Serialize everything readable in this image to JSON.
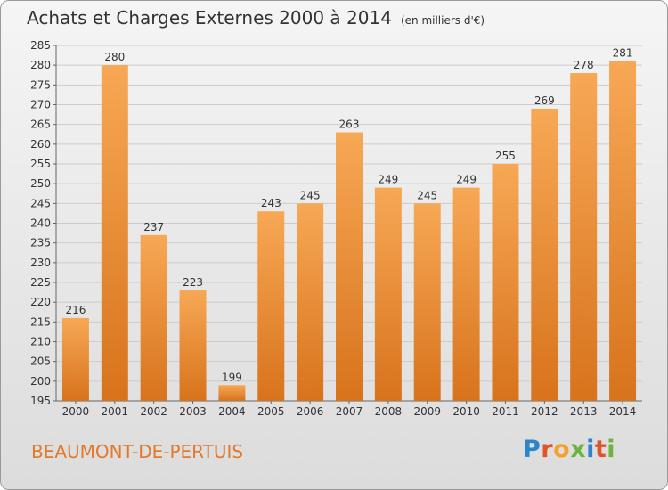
{
  "header": {
    "title": "Achats et Charges Externes 2000 à 2014",
    "unit": "(en milliers d'€)"
  },
  "footer": {
    "town": "BEAUMONT-DE-PERTUIS",
    "logo_letters": [
      "P",
      "r",
      "o",
      "x",
      "i",
      "t",
      "i"
    ]
  },
  "colors": {
    "bar_light": "#f7a855",
    "bar_dark": "#d8731c",
    "town": "#e3792b",
    "grid": "#cccccc"
  },
  "chart_data": {
    "type": "bar",
    "title": "Achats et Charges Externes 2000 à 2014",
    "subtitle": "(en milliers d'€)",
    "xlabel": "",
    "ylabel": "",
    "categories": [
      "2000",
      "2001",
      "2002",
      "2003",
      "2004",
      "2005",
      "2006",
      "2007",
      "2008",
      "2009",
      "2010",
      "2011",
      "2012",
      "2013",
      "2014"
    ],
    "values": [
      216,
      280,
      237,
      223,
      199,
      243,
      245,
      263,
      249,
      245,
      249,
      255,
      269,
      278,
      281
    ],
    "ylim": [
      195,
      285
    ],
    "yticks": [
      195,
      200,
      205,
      210,
      215,
      220,
      225,
      230,
      235,
      240,
      245,
      250,
      255,
      260,
      265,
      270,
      275,
      280,
      285
    ],
    "grid": true,
    "data_labels": true
  }
}
